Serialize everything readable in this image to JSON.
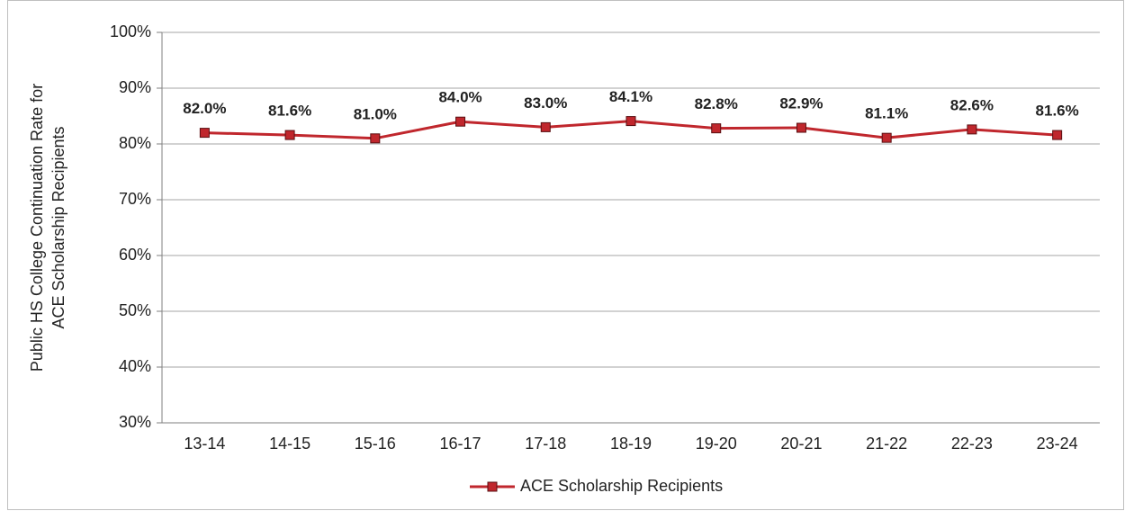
{
  "chart_data": {
    "type": "line",
    "y_label": [
      "Public HS College Continuation Rate for",
      "ACE Scholarship Recipients"
    ],
    "categories": [
      "13-14",
      "14-15",
      "15-16",
      "16-17",
      "17-18",
      "18-19",
      "19-20",
      "20-21",
      "21-22",
      "22-23",
      "23-24"
    ],
    "series": [
      {
        "name": "ACE Scholarship Recipients",
        "color": "#c0272d",
        "values": [
          82.0,
          81.6,
          81.0,
          84.0,
          83.0,
          84.1,
          82.8,
          82.9,
          81.1,
          82.6,
          81.6
        ],
        "value_labels": [
          "82.0%",
          "81.6%",
          "81.0%",
          "84.0%",
          "83.0%",
          "84.1%",
          "82.8%",
          "82.9%",
          "81.1%",
          "82.6%",
          "81.6%"
        ]
      }
    ],
    "ylim": [
      30,
      100
    ],
    "yticks": [
      {
        "value": 30,
        "label": "30%"
      },
      {
        "value": 40,
        "label": "40%"
      },
      {
        "value": 50,
        "label": "50%"
      },
      {
        "value": 60,
        "label": "60%"
      },
      {
        "value": 70,
        "label": "70%"
      },
      {
        "value": 80,
        "label": "80%"
      },
      {
        "value": 90,
        "label": "90%"
      },
      {
        "value": 100,
        "label": "100%"
      }
    ],
    "grid": true,
    "legend": "bottom"
  }
}
